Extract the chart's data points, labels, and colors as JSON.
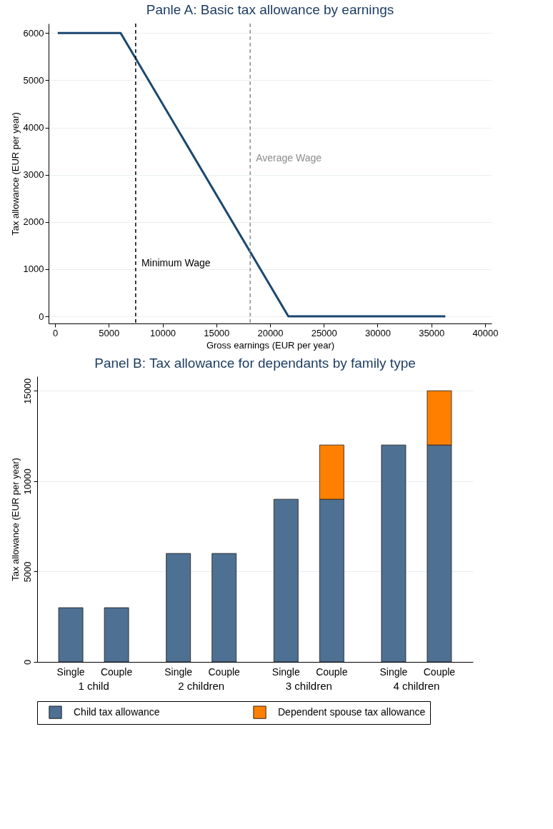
{
  "chart_data": [
    {
      "type": "line",
      "title": "Panle A: Basic tax allowance by earnings",
      "xlabel": "Gross earnings (EUR per year)",
      "ylabel": "Tax allowance (EUR per year)",
      "x": [
        250,
        6100,
        21700,
        36300
      ],
      "series": [
        {
          "color": "#1a476f",
          "values": [
            6000,
            6000,
            0,
            0
          ]
        }
      ],
      "xlim": [
        -600,
        40600
      ],
      "ylim": [
        -150,
        6200
      ],
      "xticks": [
        0,
        5000,
        10000,
        15000,
        20000,
        25000,
        30000,
        35000,
        40000
      ],
      "yticks": [
        0,
        1000,
        2000,
        3000,
        4000,
        5000,
        6000
      ],
      "grid": "y",
      "ref_lines": [
        {
          "axis": "x",
          "value": 7500,
          "label": "Minimum Wage",
          "color": "#000000",
          "line_style": "dashed"
        },
        {
          "axis": "x",
          "value": 18150,
          "label": "Average Wage",
          "color": "#8c8c8c",
          "line_style": "dashed"
        }
      ]
    },
    {
      "type": "bar",
      "title": "Panel B: Tax allowance for dependants by family type",
      "ylabel": "Tax allowance (EUR per year)",
      "categories": [
        "Single",
        "Couple",
        "Single",
        "Couple",
        "Single",
        "Couple",
        "Single",
        "Couple"
      ],
      "annotations": [
        "1 child",
        "2 children",
        "3 children",
        "4 children"
      ],
      "stacked": true,
      "series": [
        {
          "name": "Child tax allowance",
          "color": "#4e7092",
          "values": [
            3000,
            3000,
            6000,
            6000,
            9000,
            9000,
            12000,
            12000
          ]
        },
        {
          "name": "Dependent spouse tax allowance",
          "color": "#ff8000",
          "values": [
            null,
            null,
            null,
            null,
            null,
            3000,
            null,
            3000
          ]
        }
      ],
      "ylim": [
        0,
        15800
      ],
      "yticks": [
        0,
        5000,
        10000,
        15000
      ],
      "grid": "y",
      "legend": "bottom"
    }
  ]
}
